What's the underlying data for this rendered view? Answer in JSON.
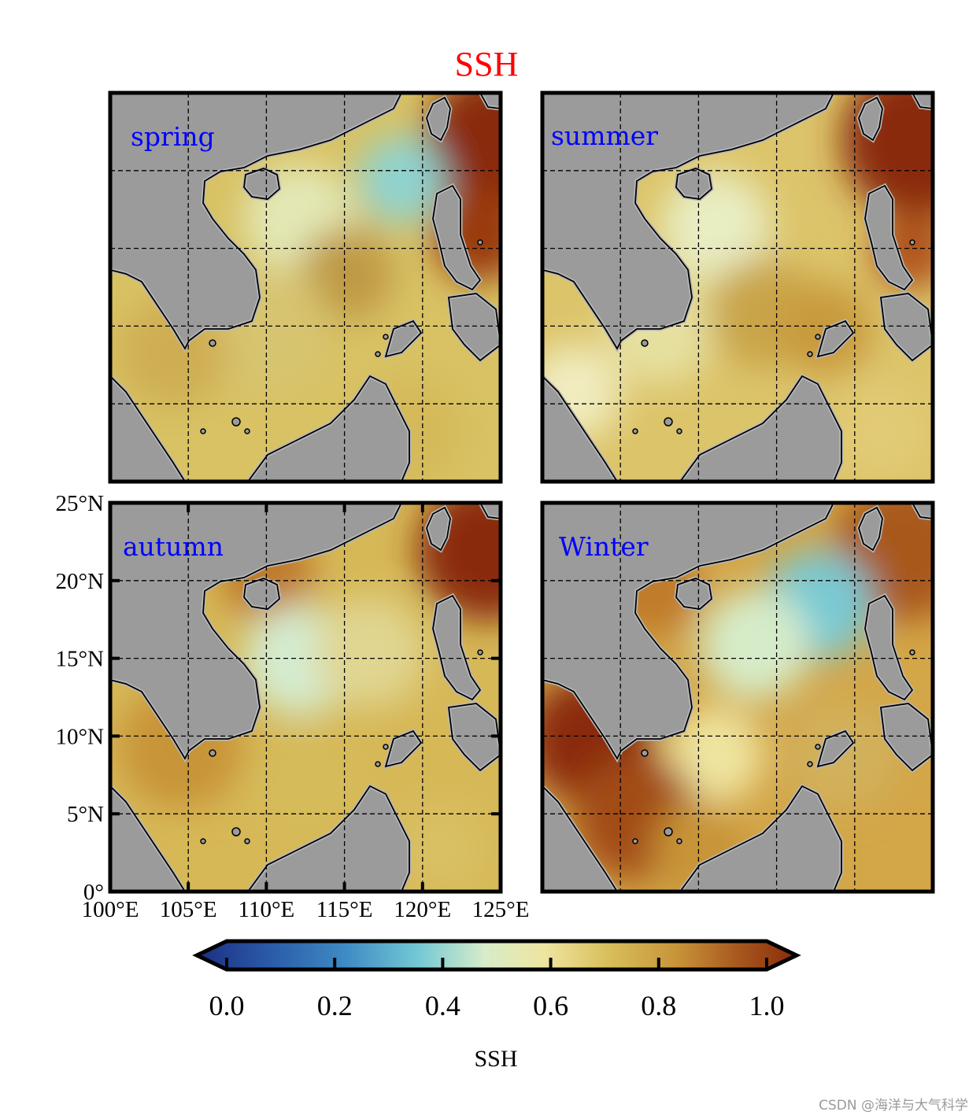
{
  "figure": {
    "title": "SSH",
    "title_color": "#ff0000",
    "watermark": "CSDN @海洋与大气科学"
  },
  "map": {
    "region": "South China Sea",
    "lon_range": [
      100,
      125
    ],
    "lat_range": [
      0,
      25
    ],
    "gridline_lons": [
      105,
      110,
      115,
      120
    ],
    "gridline_lats": [
      5,
      10,
      15,
      20
    ],
    "x_tick_labels": [
      "100°E",
      "105°E",
      "110°E",
      "115°E",
      "120°E",
      "125°E"
    ],
    "y_tick_labels": [
      "25°N",
      "20°N",
      "15°N",
      "10°N",
      "5°N",
      "0°"
    ],
    "land_color": "#9b9b9b",
    "coast_color": "#000000"
  },
  "panels": [
    {
      "label": "spring",
      "label_color": "#0000ff"
    },
    {
      "label": "summer",
      "label_color": "#0000ff"
    },
    {
      "label": "autumn",
      "label_color": "#0000ff"
    },
    {
      "label": "Winter",
      "label_color": "#0000ff"
    }
  ],
  "colorbar": {
    "label": "SSH",
    "ticks": [
      "0.0",
      "0.2",
      "0.4",
      "0.6",
      "0.8",
      "1.0"
    ],
    "range": [
      0,
      1
    ],
    "extend": "both",
    "colors": [
      "#1c2f80",
      "#2a5aa8",
      "#3f8cc4",
      "#74c9d4",
      "#d7ecc9",
      "#efe5a0",
      "#d9c15e",
      "#c89439",
      "#a9591f",
      "#8a2a0a"
    ]
  }
}
